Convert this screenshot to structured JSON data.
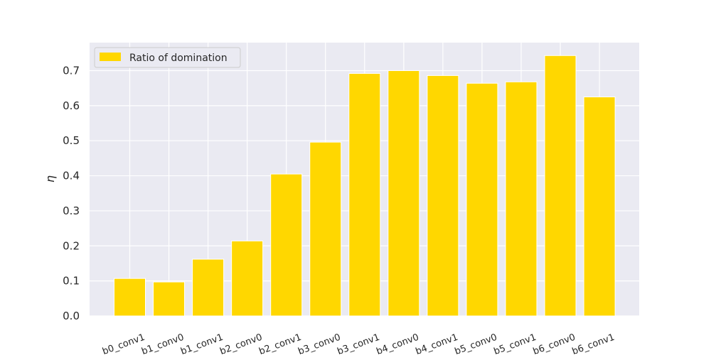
{
  "chart_data": {
    "type": "bar",
    "title": "",
    "xlabel": "",
    "ylabel": "η",
    "ylim": [
      0,
      0.78
    ],
    "yticks": [
      0.0,
      0.1,
      0.2,
      0.3,
      0.4,
      0.5,
      0.6,
      0.7
    ],
    "ytick_labels": [
      "0.0",
      "0.1",
      "0.2",
      "0.3",
      "0.4",
      "0.5",
      "0.6",
      "0.7"
    ],
    "grid": true,
    "legend_position": "top-left",
    "categories": [
      "b0_conv1",
      "b1_conv0",
      "b1_conv1",
      "b2_conv0",
      "b2_conv1",
      "b3_conv0",
      "b3_conv1",
      "b4_conv0",
      "b4_conv1",
      "b5_conv0",
      "b5_conv1",
      "b6_conv0",
      "b6_conv1"
    ],
    "series": [
      {
        "name": "Ratio of domination",
        "color": "#FFD700",
        "values": [
          0.107,
          0.097,
          0.162,
          0.214,
          0.405,
          0.496,
          0.692,
          0.7,
          0.686,
          0.664,
          0.668,
          0.743,
          0.625
        ]
      }
    ],
    "colors": {
      "plot_background": "#EAEAF2",
      "grid": "#FFFFFF",
      "bar": "#FFD700"
    }
  }
}
